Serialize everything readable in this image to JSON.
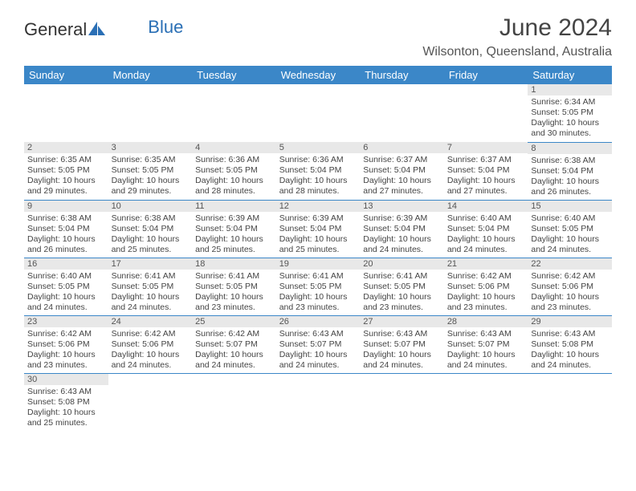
{
  "colors": {
    "header_bg": "#3b87c8",
    "header_text": "#ffffff",
    "daynum_bg": "#e8e8e8",
    "border": "#3b87c8",
    "logo_text": "#333333",
    "logo_blue": "#2a6fb5"
  },
  "logo": {
    "part1": "General",
    "part2": "Blue"
  },
  "title": "June 2024",
  "location": "Wilsonton, Queensland, Australia",
  "weekdays": [
    "Sunday",
    "Monday",
    "Tuesday",
    "Wednesday",
    "Thursday",
    "Friday",
    "Saturday"
  ],
  "weeks": [
    [
      null,
      null,
      null,
      null,
      null,
      null,
      {
        "n": "1",
        "sr": "6:34 AM",
        "ss": "5:05 PM",
        "dl": "10 hours and 30 minutes."
      }
    ],
    [
      {
        "n": "2",
        "sr": "6:35 AM",
        "ss": "5:05 PM",
        "dl": "10 hours and 29 minutes."
      },
      {
        "n": "3",
        "sr": "6:35 AM",
        "ss": "5:05 PM",
        "dl": "10 hours and 29 minutes."
      },
      {
        "n": "4",
        "sr": "6:36 AM",
        "ss": "5:05 PM",
        "dl": "10 hours and 28 minutes."
      },
      {
        "n": "5",
        "sr": "6:36 AM",
        "ss": "5:04 PM",
        "dl": "10 hours and 28 minutes."
      },
      {
        "n": "6",
        "sr": "6:37 AM",
        "ss": "5:04 PM",
        "dl": "10 hours and 27 minutes."
      },
      {
        "n": "7",
        "sr": "6:37 AM",
        "ss": "5:04 PM",
        "dl": "10 hours and 27 minutes."
      },
      {
        "n": "8",
        "sr": "6:38 AM",
        "ss": "5:04 PM",
        "dl": "10 hours and 26 minutes."
      }
    ],
    [
      {
        "n": "9",
        "sr": "6:38 AM",
        "ss": "5:04 PM",
        "dl": "10 hours and 26 minutes."
      },
      {
        "n": "10",
        "sr": "6:38 AM",
        "ss": "5:04 PM",
        "dl": "10 hours and 25 minutes."
      },
      {
        "n": "11",
        "sr": "6:39 AM",
        "ss": "5:04 PM",
        "dl": "10 hours and 25 minutes."
      },
      {
        "n": "12",
        "sr": "6:39 AM",
        "ss": "5:04 PM",
        "dl": "10 hours and 25 minutes."
      },
      {
        "n": "13",
        "sr": "6:39 AM",
        "ss": "5:04 PM",
        "dl": "10 hours and 24 minutes."
      },
      {
        "n": "14",
        "sr": "6:40 AM",
        "ss": "5:04 PM",
        "dl": "10 hours and 24 minutes."
      },
      {
        "n": "15",
        "sr": "6:40 AM",
        "ss": "5:05 PM",
        "dl": "10 hours and 24 minutes."
      }
    ],
    [
      {
        "n": "16",
        "sr": "6:40 AM",
        "ss": "5:05 PM",
        "dl": "10 hours and 24 minutes."
      },
      {
        "n": "17",
        "sr": "6:41 AM",
        "ss": "5:05 PM",
        "dl": "10 hours and 24 minutes."
      },
      {
        "n": "18",
        "sr": "6:41 AM",
        "ss": "5:05 PM",
        "dl": "10 hours and 23 minutes."
      },
      {
        "n": "19",
        "sr": "6:41 AM",
        "ss": "5:05 PM",
        "dl": "10 hours and 23 minutes."
      },
      {
        "n": "20",
        "sr": "6:41 AM",
        "ss": "5:05 PM",
        "dl": "10 hours and 23 minutes."
      },
      {
        "n": "21",
        "sr": "6:42 AM",
        "ss": "5:06 PM",
        "dl": "10 hours and 23 minutes."
      },
      {
        "n": "22",
        "sr": "6:42 AM",
        "ss": "5:06 PM",
        "dl": "10 hours and 23 minutes."
      }
    ],
    [
      {
        "n": "23",
        "sr": "6:42 AM",
        "ss": "5:06 PM",
        "dl": "10 hours and 23 minutes."
      },
      {
        "n": "24",
        "sr": "6:42 AM",
        "ss": "5:06 PM",
        "dl": "10 hours and 24 minutes."
      },
      {
        "n": "25",
        "sr": "6:42 AM",
        "ss": "5:07 PM",
        "dl": "10 hours and 24 minutes."
      },
      {
        "n": "26",
        "sr": "6:43 AM",
        "ss": "5:07 PM",
        "dl": "10 hours and 24 minutes."
      },
      {
        "n": "27",
        "sr": "6:43 AM",
        "ss": "5:07 PM",
        "dl": "10 hours and 24 minutes."
      },
      {
        "n": "28",
        "sr": "6:43 AM",
        "ss": "5:07 PM",
        "dl": "10 hours and 24 minutes."
      },
      {
        "n": "29",
        "sr": "6:43 AM",
        "ss": "5:08 PM",
        "dl": "10 hours and 24 minutes."
      }
    ],
    [
      {
        "n": "30",
        "sr": "6:43 AM",
        "ss": "5:08 PM",
        "dl": "10 hours and 25 minutes."
      },
      null,
      null,
      null,
      null,
      null,
      null
    ]
  ],
  "labels": {
    "sunrise": "Sunrise:",
    "sunset": "Sunset:",
    "daylight": "Daylight:"
  }
}
